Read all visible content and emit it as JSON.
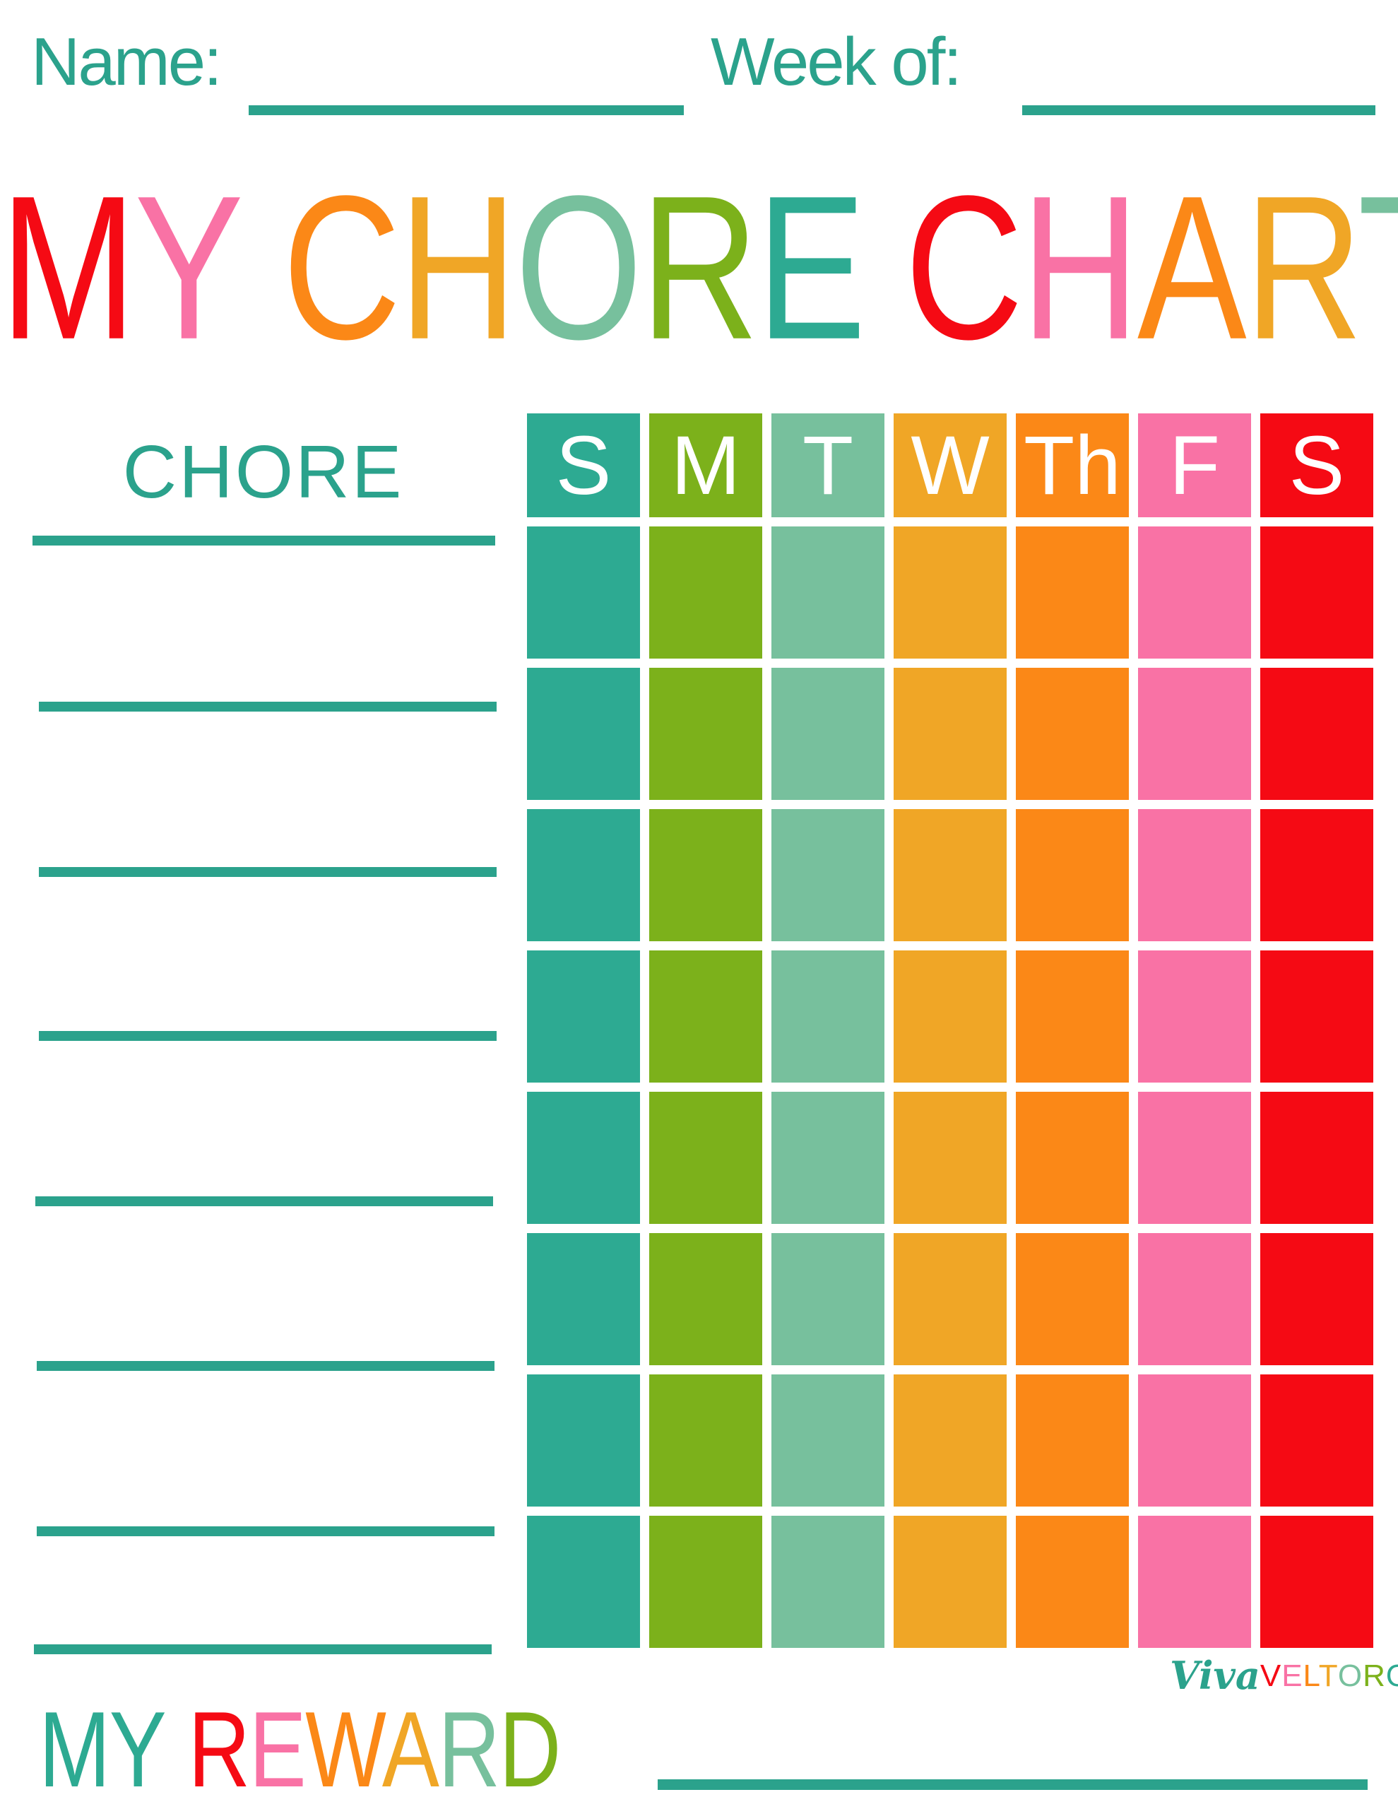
{
  "palette": {
    "teal": "#2DAA92",
    "green": "#7CB11B",
    "seafoam": "#77C09D",
    "gold": "#F0A626",
    "orange": "#FB8817",
    "pink": "#F972A5",
    "red": "#F50A14",
    "ink_teal": "#2BA28C",
    "white": "#FFFFFF"
  },
  "header": {
    "name_label": "Name:",
    "week_label": "Week of:"
  },
  "title": {
    "text": "MY CHORE CHART",
    "letters": [
      {
        "ch": "M",
        "color": "red"
      },
      {
        "ch": "Y",
        "color": "pink"
      },
      {
        "ch": " "
      },
      {
        "ch": "C",
        "color": "orange"
      },
      {
        "ch": "H",
        "color": "gold"
      },
      {
        "ch": "O",
        "color": "seafoam"
      },
      {
        "ch": "R",
        "color": "green"
      },
      {
        "ch": "E",
        "color": "teal"
      },
      {
        "ch": " "
      },
      {
        "ch": "C",
        "color": "red"
      },
      {
        "ch": "H",
        "color": "pink"
      },
      {
        "ch": "A",
        "color": "orange"
      },
      {
        "ch": "R",
        "color": "gold"
      },
      {
        "ch": "T",
        "color": "seafoam"
      }
    ]
  },
  "table": {
    "chore_label": "CHORE",
    "days": [
      {
        "label": "S",
        "color": "teal"
      },
      {
        "label": "M",
        "color": "green"
      },
      {
        "label": "T",
        "color": "seafoam"
      },
      {
        "label": "W",
        "color": "gold"
      },
      {
        "label": "Th",
        "color": "orange"
      },
      {
        "label": "F",
        "color": "pink"
      },
      {
        "label": "S",
        "color": "red"
      }
    ],
    "rows": 8,
    "chore_lines": 8
  },
  "footer": {
    "reward_text": "MY REWARD",
    "reward_letters": [
      {
        "ch": "M",
        "color": "teal"
      },
      {
        "ch": "Y",
        "color": "teal"
      },
      {
        "ch": " "
      },
      {
        "ch": "R",
        "color": "red"
      },
      {
        "ch": "E",
        "color": "pink"
      },
      {
        "ch": "W",
        "color": "orange"
      },
      {
        "ch": "A",
        "color": "gold"
      },
      {
        "ch": "R",
        "color": "seafoam"
      },
      {
        "ch": "D",
        "color": "green"
      }
    ]
  },
  "logo": {
    "script": "Viva",
    "caps_text": "VELTORO",
    "caps_letters": [
      {
        "ch": "V",
        "color": "red"
      },
      {
        "ch": "E",
        "color": "pink"
      },
      {
        "ch": "L",
        "color": "orange"
      },
      {
        "ch": "T",
        "color": "gold"
      },
      {
        "ch": "O",
        "color": "seafoam"
      },
      {
        "ch": "R",
        "color": "green"
      },
      {
        "ch": "O",
        "color": "teal"
      }
    ]
  }
}
